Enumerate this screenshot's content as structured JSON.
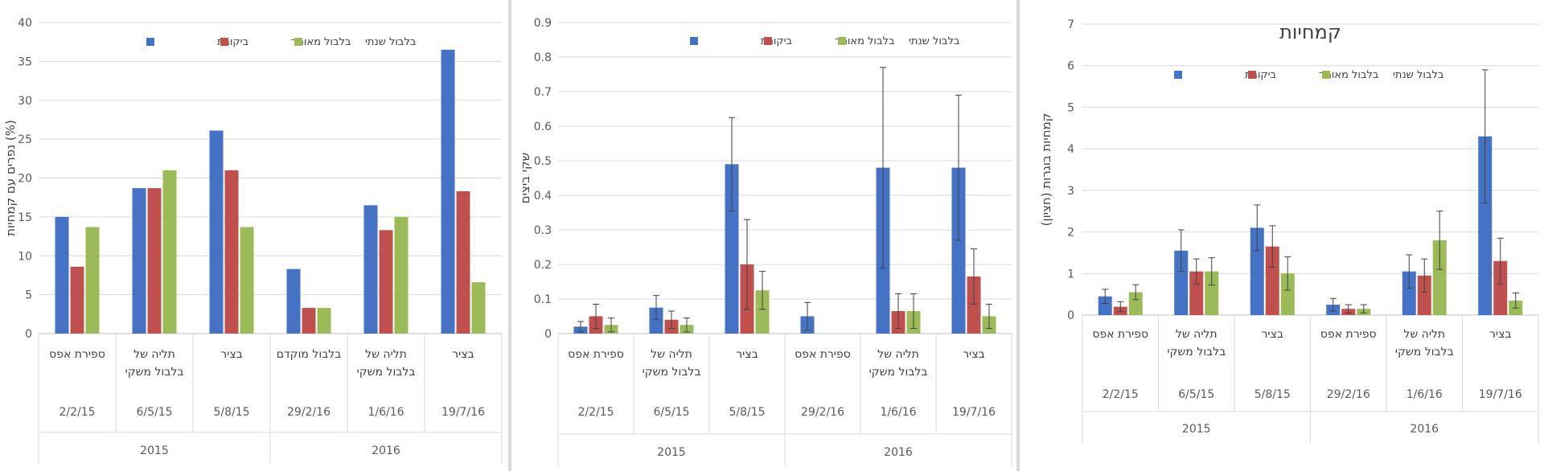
{
  "chart_data": [
    {
      "type": "bar",
      "title": "",
      "ylabel": "נפרים עם קמחיות (%)",
      "xlabel": "",
      "ylim": [
        0,
        40
      ],
      "yticks": [
        "0",
        "5",
        "10",
        "15",
        "20",
        "25",
        "30",
        "35",
        "40"
      ],
      "legend_position": "top",
      "categories": [
        {
          "treatment": "ספירת אפס",
          "date": "2/2/15"
        },
        {
          "treatment": "תליה של בלבול משקי",
          "date": "6/5/15"
        },
        {
          "treatment": "בציר",
          "date": "5/8/15"
        },
        {
          "treatment": "בלבול מוקדם",
          "date": "29/2/16"
        },
        {
          "treatment": "תליה של בלבול משקי",
          "date": "1/6/16"
        },
        {
          "treatment": "בציר",
          "date": "19/7/16"
        }
      ],
      "years": [
        {
          "label": "2015",
          "span": [
            0,
            2
          ]
        },
        {
          "label": "2016",
          "span": [
            3,
            5
          ]
        }
      ],
      "series": [
        {
          "name": "ביקורת",
          "color": "#4472c4",
          "values": [
            15,
            18.7,
            26.1,
            8.3,
            16.5,
            36.5
          ]
        },
        {
          "name": "בלבול מאוחר",
          "color": "#c0504d",
          "values": [
            8.6,
            18.7,
            21,
            3.3,
            13.3,
            18.3
          ]
        },
        {
          "name": "בלבול שנתי",
          "color": "#9bbb59",
          "values": [
            13.7,
            21,
            13.7,
            3.3,
            15,
            6.6
          ]
        }
      ]
    },
    {
      "type": "bar",
      "title": "",
      "ylabel": "שקי ביצים",
      "xlabel": "",
      "ylim": [
        0,
        0.9
      ],
      "yticks": [
        "0",
        "0.1",
        "0.2",
        "0.3",
        "0.4",
        "0.5",
        "0.6",
        "0.7",
        "0.8",
        "0.9"
      ],
      "legend_position": "top",
      "categories": [
        {
          "treatment": "ספירת אפס",
          "date": "2/2/15"
        },
        {
          "treatment": "תליה של בלבול משקי",
          "date": "6/5/15"
        },
        {
          "treatment": "בציר",
          "date": "5/8/15"
        },
        {
          "treatment": "ספירת אפס",
          "date": "29/2/16"
        },
        {
          "treatment": "תליה של בלבול משקי",
          "date": "1/6/16"
        },
        {
          "treatment": "בציר",
          "date": "19/7/16"
        }
      ],
      "years": [
        {
          "label": "2015",
          "span": [
            0,
            2
          ]
        },
        {
          "label": "2016",
          "span": [
            3,
            5
          ]
        }
      ],
      "series": [
        {
          "name": "ביקורת",
          "color": "#4472c4",
          "values": [
            0.02,
            0.075,
            0.49,
            0.05,
            0.48,
            0.48
          ],
          "errors": [
            0.015,
            0.035,
            0.135,
            0.04,
            0.29,
            0.21
          ]
        },
        {
          "name": "בלבול מאוחר",
          "color": "#c0504d",
          "values": [
            0.05,
            0.04,
            0.2,
            0,
            0.065,
            0.165
          ],
          "errors": [
            0.035,
            0.025,
            0.13,
            0,
            0.05,
            0.08
          ]
        },
        {
          "name": "בלבול שנתי",
          "color": "#9bbb59",
          "values": [
            0.025,
            0.025,
            0.125,
            0,
            0.065,
            0.05
          ],
          "errors": [
            0.02,
            0.02,
            0.055,
            0,
            0.05,
            0.035
          ]
        }
      ]
    },
    {
      "type": "bar",
      "title": "קמחיות",
      "ylabel": "קמחיות בוגרות (חציון)",
      "xlabel": "",
      "ylim": [
        0,
        7
      ],
      "yticks": [
        "0",
        "1",
        "2",
        "3",
        "4",
        "5",
        "6",
        "7"
      ],
      "legend_position": "top",
      "categories": [
        {
          "treatment": "ספירת אפס",
          "date": "2/2/15"
        },
        {
          "treatment": "תליה של בלבול משקי",
          "date": "6/5/15"
        },
        {
          "treatment": "בציר",
          "date": "5/8/15"
        },
        {
          "treatment": "ספירת אפס",
          "date": "29/2/16"
        },
        {
          "treatment": "תליה של בלבול משקי",
          "date": "1/6/16"
        },
        {
          "treatment": "בציר",
          "date": "19/7/16"
        }
      ],
      "years": [
        {
          "label": "2015",
          "span": [
            0,
            2
          ]
        },
        {
          "label": "2016",
          "span": [
            3,
            5
          ]
        }
      ],
      "series": [
        {
          "name": "ביקורת",
          "color": "#4472c4",
          "values": [
            0.45,
            1.55,
            2.1,
            0.25,
            1.05,
            4.3
          ],
          "errors": [
            0.17,
            0.5,
            0.55,
            0.15,
            0.4,
            1.6
          ]
        },
        {
          "name": "בלבול מאוחר",
          "color": "#c0504d",
          "values": [
            0.2,
            1.05,
            1.65,
            0.15,
            0.95,
            1.3
          ],
          "errors": [
            0.12,
            0.3,
            0.5,
            0.1,
            0.4,
            0.55
          ]
        },
        {
          "name": "בלבול שנתי",
          "color": "#9bbb59",
          "values": [
            0.55,
            1.05,
            1.0,
            0.15,
            1.8,
            0.35
          ],
          "errors": [
            0.18,
            0.33,
            0.4,
            0.1,
            0.7,
            0.18
          ]
        }
      ]
    }
  ]
}
